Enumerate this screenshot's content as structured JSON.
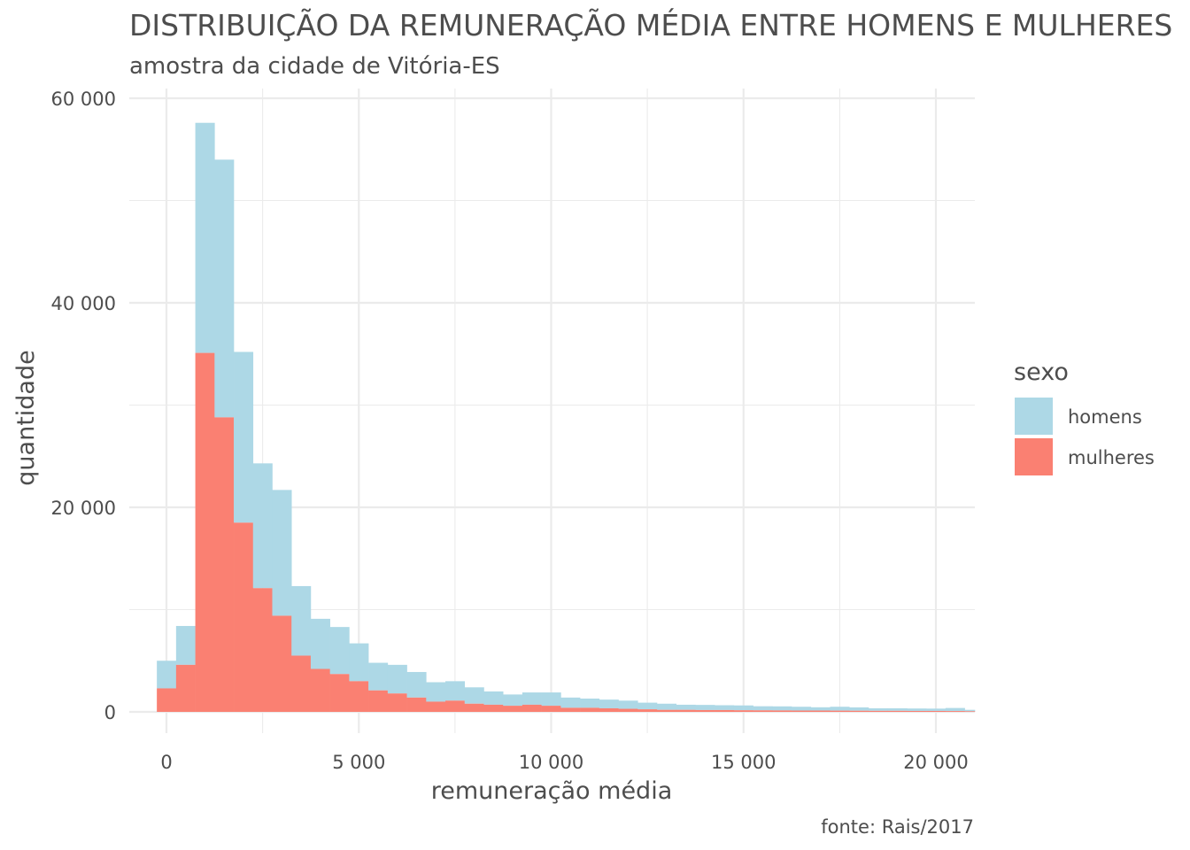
{
  "chart_data": {
    "type": "bar",
    "title": "DISTRIBUIÇÃO DA REMUNERAÇÃO MÉDIA ENTRE HOMENS E MULHERES",
    "subtitle": "amostra da cidade de Vitória-ES",
    "xlabel": "remuneração média",
    "ylabel": "quantidade",
    "caption": "fonte: Rais/2017",
    "stacked": true,
    "xlim": [
      -500,
      21000
    ],
    "ylim": [
      -2000,
      61000
    ],
    "x_ticks": [
      0,
      5000,
      10000,
      15000,
      20000
    ],
    "x_tick_labels": [
      "0",
      "5 000",
      "10 000",
      "15 000",
      "20 000"
    ],
    "y_ticks": [
      0,
      20000,
      40000,
      60000
    ],
    "y_tick_labels": [
      "0",
      "20 000",
      "40 000",
      "60 000"
    ],
    "grid": true,
    "legend": {
      "title": "sexo",
      "position": "right"
    },
    "bin_width": 500,
    "bin_starts": [
      -250,
      250,
      750,
      1250,
      1750,
      2250,
      2750,
      3250,
      3750,
      4250,
      4750,
      5250,
      5750,
      6250,
      6750,
      7250,
      7750,
      8250,
      8750,
      9250,
      9750,
      10250,
      10750,
      11250,
      11750,
      12250,
      12750,
      13250,
      13750,
      14250,
      14750,
      15250,
      15750,
      16250,
      16750,
      17250,
      17750,
      18250,
      18750,
      19250,
      19750,
      20250,
      20750
    ],
    "series": [
      {
        "name": "mulheres",
        "color": "#fa8072",
        "values": [
          2300,
          4600,
          35100,
          28800,
          18500,
          12100,
          9400,
          5500,
          4200,
          3700,
          3000,
          2100,
          1800,
          1400,
          1000,
          1100,
          800,
          700,
          600,
          700,
          600,
          400,
          400,
          350,
          300,
          250,
          200,
          200,
          180,
          180,
          160,
          150,
          140,
          130,
          130,
          120,
          110,
          100,
          100,
          90,
          90,
          80,
          60
        ]
      },
      {
        "name": "homens",
        "color": "#add8e6",
        "values": [
          2700,
          3800,
          22500,
          25200,
          16700,
          12200,
          12300,
          6800,
          4900,
          4600,
          3700,
          2700,
          2800,
          2500,
          1900,
          1900,
          1600,
          1300,
          1100,
          1200,
          1300,
          1000,
          900,
          850,
          800,
          650,
          600,
          500,
          500,
          470,
          470,
          400,
          400,
          370,
          320,
          380,
          330,
          250,
          250,
          240,
          230,
          300,
          140
        ]
      }
    ]
  }
}
